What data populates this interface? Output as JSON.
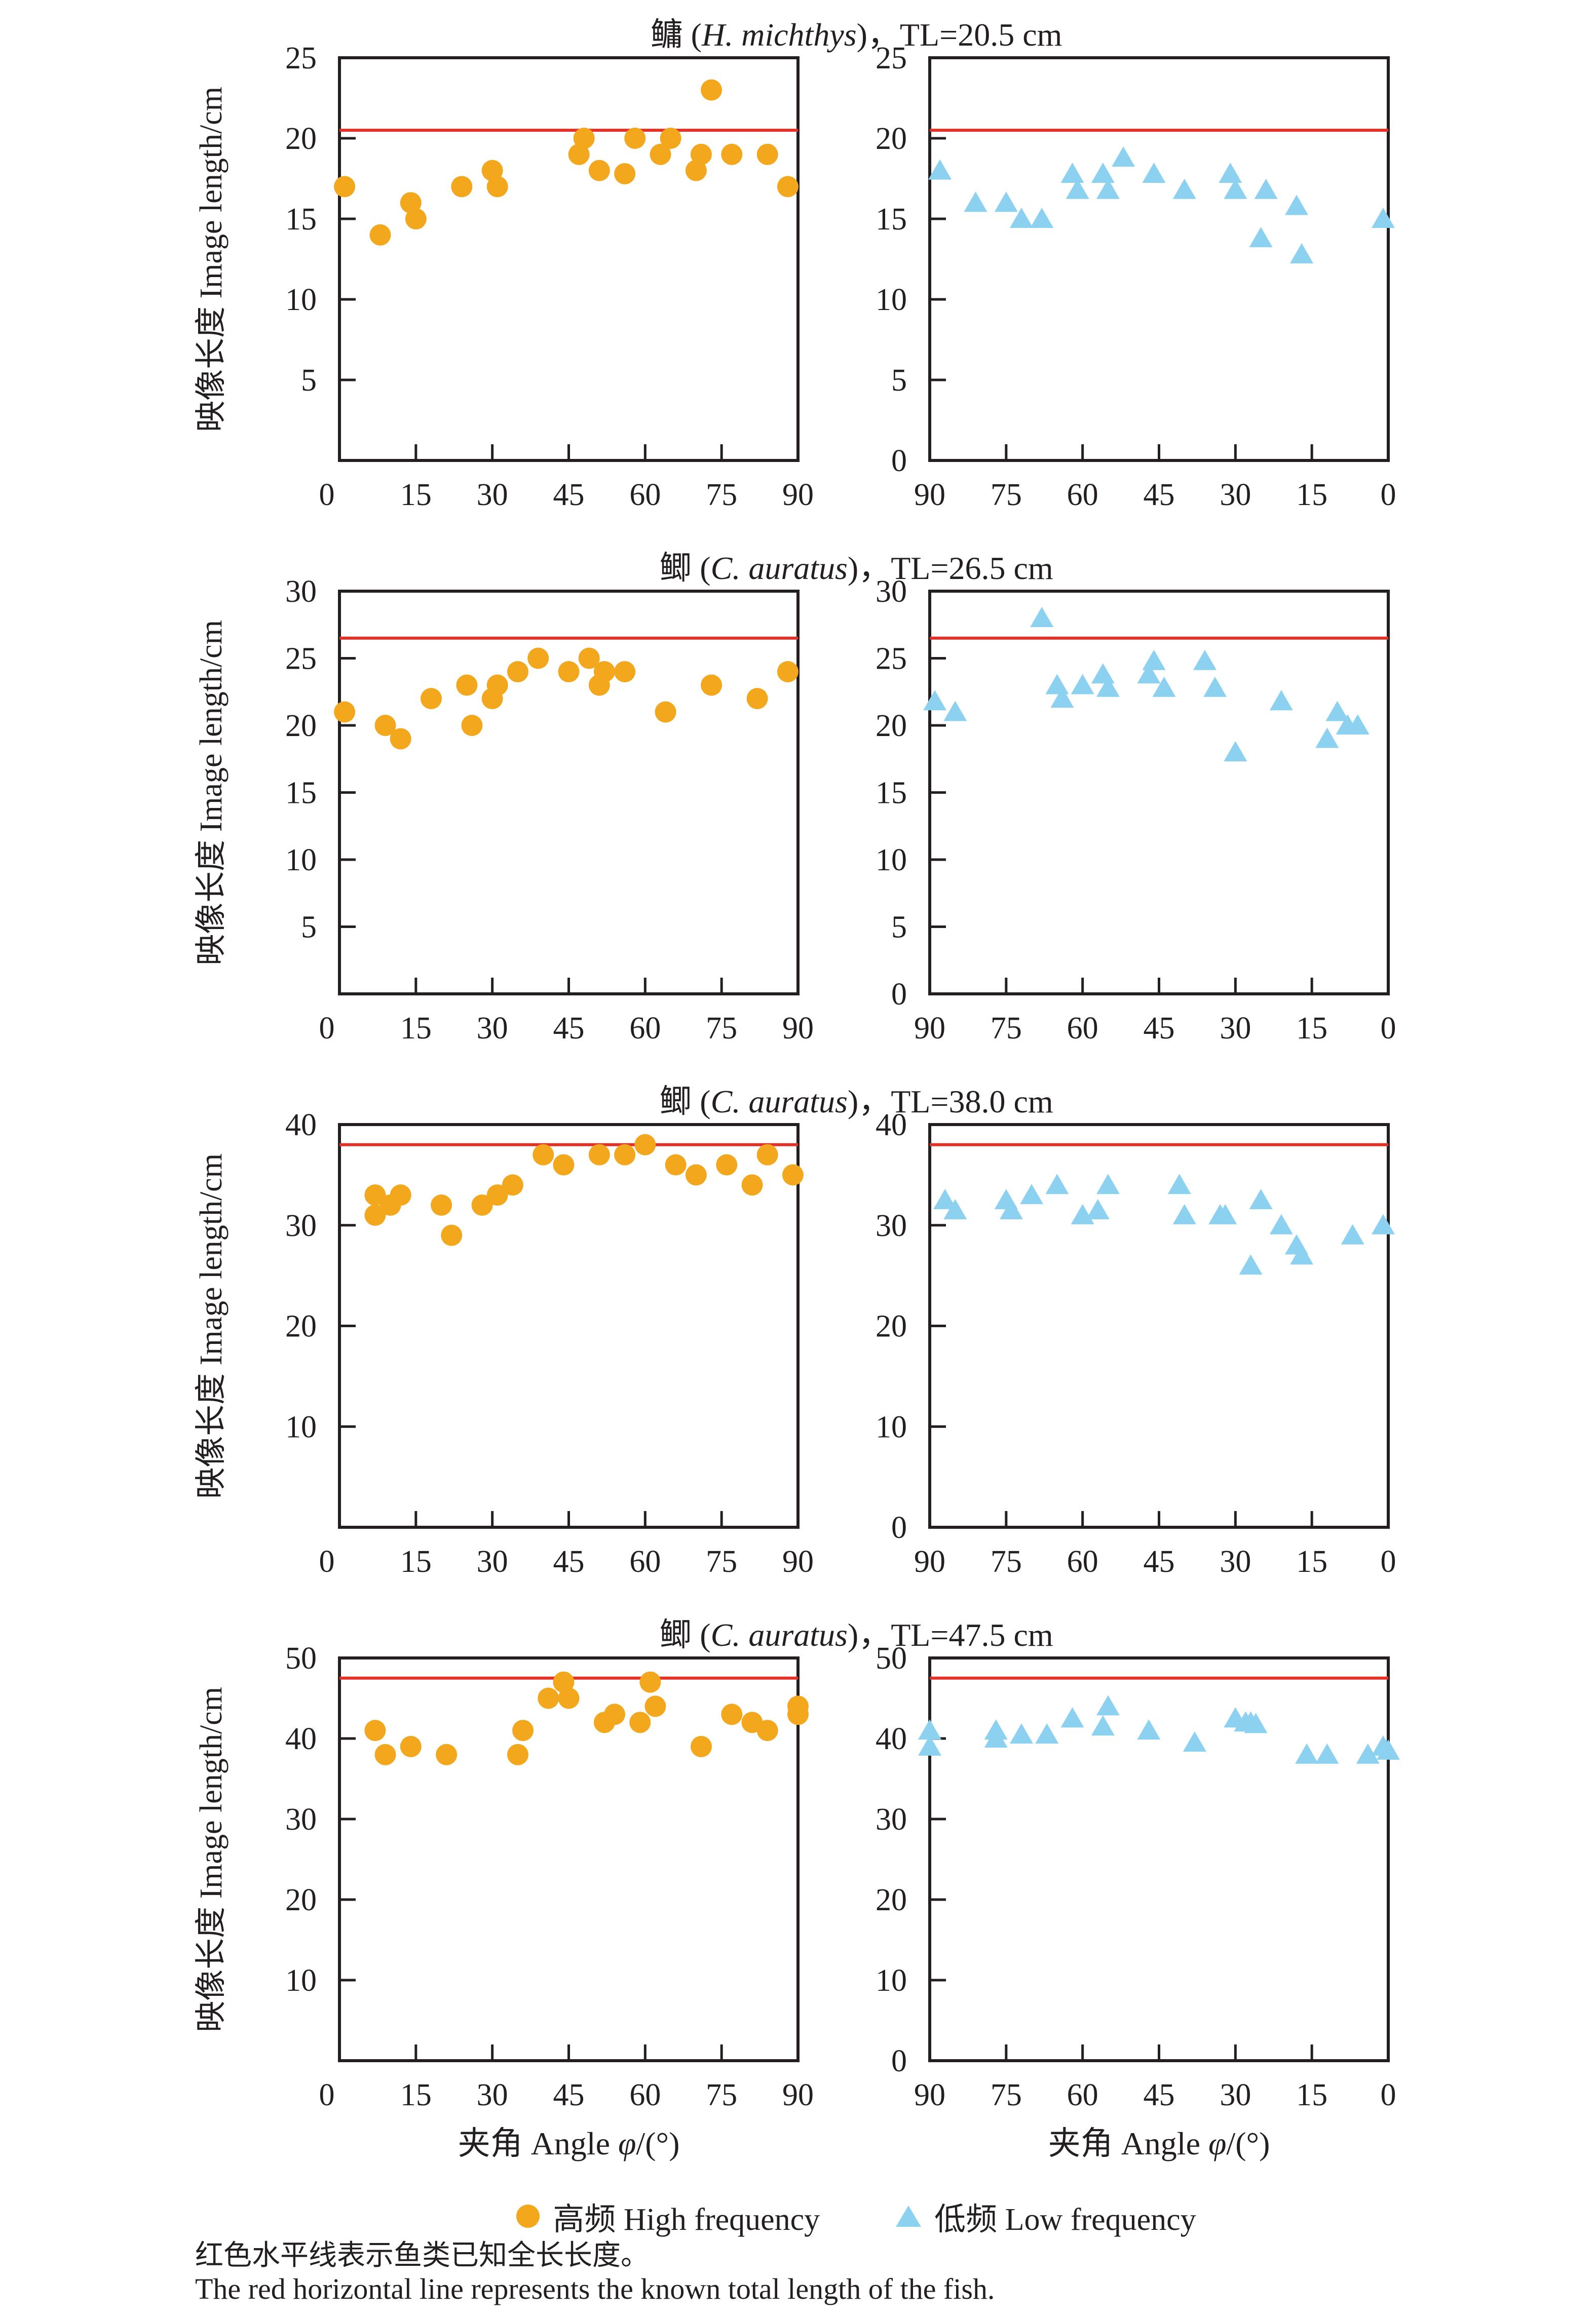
{
  "figure": {
    "y_axis_label": "映像长度 Image length/cm",
    "x_axis_label": {
      "prefix": "夹角 Angle ",
      "phi": "φ",
      "suffix": "/(°)"
    },
    "legend": {
      "high_label": "高频 High frequency",
      "low_label": "低频 Low frequency"
    },
    "caption_cn": "红色水平线表示鱼类已知全长长度。",
    "caption_en": "The red horizontal line represents the known total length of the fish.",
    "colors": {
      "high_frequency": "#f3a71c",
      "low_frequency": "#8cd2f0",
      "reference_line": "#e43128",
      "axis": "#231f20"
    }
  },
  "chart_data": [
    {
      "type": "scatter",
      "title": {
        "prefix": "鳙 (",
        "species": "H. michthys",
        "suffix": ")，TL=20.5 cm"
      },
      "known_total_length_cm": 20.5,
      "ylim": [
        0,
        25
      ],
      "yticks": [
        0,
        5,
        10,
        15,
        20,
        25
      ],
      "panels": [
        {
          "name": "high-frequency",
          "legend": "高频 High frequency",
          "marker": "circle",
          "color": "#f3a71c",
          "x_reversed": false,
          "xticks": [
            0,
            15,
            30,
            45,
            60,
            75,
            90
          ],
          "points": [
            [
              1,
              17
            ],
            [
              8,
              14
            ],
            [
              14,
              16
            ],
            [
              15,
              15
            ],
            [
              24,
              17
            ],
            [
              30,
              18
            ],
            [
              31,
              17
            ],
            [
              47,
              19
            ],
            [
              48,
              20
            ],
            [
              51,
              18
            ],
            [
              56,
              17.8
            ],
            [
              58,
              20
            ],
            [
              63,
              19
            ],
            [
              65,
              20
            ],
            [
              70,
              18
            ],
            [
              71,
              19
            ],
            [
              73,
              23
            ],
            [
              77,
              19
            ],
            [
              84,
              19
            ],
            [
              88,
              17
            ]
          ]
        },
        {
          "name": "low-frequency",
          "legend": "低频 Low frequency",
          "marker": "triangle",
          "color": "#8cd2f0",
          "x_reversed": true,
          "xticks": [
            90,
            75,
            60,
            45,
            30,
            15,
            0
          ],
          "points": [
            [
              88,
              18
            ],
            [
              81,
              16
            ],
            [
              75,
              16
            ],
            [
              72,
              15
            ],
            [
              68,
              15
            ],
            [
              62,
              17.8
            ],
            [
              61,
              16.8
            ],
            [
              56,
              17.8
            ],
            [
              55,
              16.8
            ],
            [
              52,
              18.8
            ],
            [
              46,
              17.8
            ],
            [
              40,
              16.8
            ],
            [
              31,
              17.8
            ],
            [
              30,
              16.8
            ],
            [
              25,
              13.8
            ],
            [
              24,
              16.8
            ],
            [
              18,
              15.8
            ],
            [
              17,
              12.8
            ],
            [
              1,
              15
            ]
          ]
        }
      ]
    },
    {
      "type": "scatter",
      "title": {
        "prefix": "鲫 (",
        "species": "C. auratus",
        "suffix": ")，TL=26.5 cm"
      },
      "known_total_length_cm": 26.5,
      "ylim": [
        0,
        30
      ],
      "yticks": [
        0,
        5,
        10,
        15,
        20,
        25,
        30
      ],
      "panels": [
        {
          "name": "high-frequency",
          "legend": "高频 High frequency",
          "marker": "circle",
          "color": "#f3a71c",
          "x_reversed": false,
          "xticks": [
            0,
            15,
            30,
            45,
            60,
            75,
            90
          ],
          "points": [
            [
              1,
              21
            ],
            [
              9,
              20
            ],
            [
              12,
              19
            ],
            [
              18,
              22
            ],
            [
              25,
              23
            ],
            [
              26,
              20
            ],
            [
              30,
              22
            ],
            [
              31,
              23
            ],
            [
              35,
              24
            ],
            [
              39,
              25
            ],
            [
              45,
              24
            ],
            [
              49,
              25
            ],
            [
              51,
              23
            ],
            [
              52,
              24
            ],
            [
              56,
              24
            ],
            [
              64,
              21
            ],
            [
              73,
              23
            ],
            [
              82,
              22
            ],
            [
              88,
              24
            ]
          ]
        },
        {
          "name": "low-frequency",
          "legend": "低频 Low frequency",
          "marker": "triangle",
          "color": "#8cd2f0",
          "x_reversed": true,
          "xticks": [
            90,
            75,
            60,
            45,
            30,
            15,
            0
          ],
          "points": [
            [
              89,
              21.8
            ],
            [
              85,
              21
            ],
            [
              68,
              28
            ],
            [
              65,
              23
            ],
            [
              64,
              22
            ],
            [
              60,
              23
            ],
            [
              56,
              23.8
            ],
            [
              55,
              22.8
            ],
            [
              47,
              23.8
            ],
            [
              46,
              24.8
            ],
            [
              44,
              22.8
            ],
            [
              36,
              24.8
            ],
            [
              34,
              22.8
            ],
            [
              30,
              18
            ],
            [
              21,
              21.8
            ],
            [
              12,
              19
            ],
            [
              10,
              21
            ],
            [
              8,
              20
            ],
            [
              6,
              20
            ]
          ]
        }
      ]
    },
    {
      "type": "scatter",
      "title": {
        "prefix": "鲫 (",
        "species": "C. auratus",
        "suffix": ")，TL=38.0 cm"
      },
      "known_total_length_cm": 38.0,
      "ylim": [
        0,
        40
      ],
      "yticks": [
        0,
        10,
        20,
        30,
        40
      ],
      "panels": [
        {
          "name": "high-frequency",
          "legend": "高频 High frequency",
          "marker": "circle",
          "color": "#f3a71c",
          "x_reversed": false,
          "xticks": [
            0,
            15,
            30,
            45,
            60,
            75,
            90
          ],
          "points": [
            [
              7,
              33
            ],
            [
              7,
              31
            ],
            [
              10,
              32
            ],
            [
              12,
              33
            ],
            [
              20,
              32
            ],
            [
              22,
              29
            ],
            [
              28,
              32
            ],
            [
              31,
              33
            ],
            [
              34,
              34
            ],
            [
              40,
              37
            ],
            [
              44,
              36
            ],
            [
              51,
              37
            ],
            [
              56,
              37
            ],
            [
              60,
              38
            ],
            [
              66,
              36
            ],
            [
              70,
              35
            ],
            [
              76,
              36
            ],
            [
              81,
              34
            ],
            [
              84,
              37
            ],
            [
              89,
              35
            ]
          ]
        },
        {
          "name": "low-frequency",
          "legend": "低频 Low frequency",
          "marker": "triangle",
          "color": "#8cd2f0",
          "x_reversed": true,
          "xticks": [
            90,
            75,
            60,
            45,
            30,
            15,
            0
          ],
          "points": [
            [
              87,
              32.5
            ],
            [
              85,
              31.5
            ],
            [
              75,
              32.5
            ],
            [
              74,
              31.5
            ],
            [
              70,
              33
            ],
            [
              65,
              34
            ],
            [
              60,
              31
            ],
            [
              57,
              31.5
            ],
            [
              55,
              34
            ],
            [
              41,
              34
            ],
            [
              40,
              31
            ],
            [
              33,
              31
            ],
            [
              32,
              31
            ],
            [
              27,
              26
            ],
            [
              25,
              32.5
            ],
            [
              21,
              30
            ],
            [
              18,
              28
            ],
            [
              17,
              27
            ],
            [
              7,
              29
            ],
            [
              1,
              30
            ]
          ]
        }
      ]
    },
    {
      "type": "scatter",
      "title": {
        "prefix": "鲫 (",
        "species": "C. auratus",
        "suffix": ")，TL=47.5 cm"
      },
      "known_total_length_cm": 47.5,
      "ylim": [
        0,
        50
      ],
      "yticks": [
        0,
        10,
        20,
        30,
        40,
        50
      ],
      "panels": [
        {
          "name": "high-frequency",
          "legend": "高频 High frequency",
          "marker": "circle",
          "color": "#f3a71c",
          "x_reversed": false,
          "xticks": [
            0,
            15,
            30,
            45,
            60,
            75,
            90
          ],
          "points": [
            [
              7,
              41
            ],
            [
              9,
              38
            ],
            [
              14,
              39
            ],
            [
              21,
              38
            ],
            [
              35,
              38
            ],
            [
              36,
              41
            ],
            [
              41,
              45
            ],
            [
              44,
              47
            ],
            [
              45,
              45
            ],
            [
              52,
              42
            ],
            [
              54,
              43
            ],
            [
              59,
              42
            ],
            [
              61,
              47
            ],
            [
              62,
              44
            ],
            [
              71,
              39
            ],
            [
              77,
              43
            ],
            [
              81,
              42
            ],
            [
              84,
              41
            ],
            [
              90,
              44
            ],
            [
              90,
              43
            ]
          ]
        },
        {
          "name": "low-frequency",
          "legend": "低频 Low frequency",
          "marker": "triangle",
          "color": "#8cd2f0",
          "x_reversed": true,
          "xticks": [
            90,
            75,
            60,
            45,
            30,
            15,
            0
          ],
          "points": [
            [
              90,
              41
            ],
            [
              90,
              39
            ],
            [
              77,
              41
            ],
            [
              77,
              40
            ],
            [
              72,
              40.5
            ],
            [
              67,
              40.5
            ],
            [
              62,
              42.5
            ],
            [
              56,
              41.5
            ],
            [
              55,
              44
            ],
            [
              47,
              41
            ],
            [
              38,
              39.5
            ],
            [
              30,
              42.5
            ],
            [
              28,
              42
            ],
            [
              27,
              42
            ],
            [
              26,
              41.8
            ],
            [
              16,
              38
            ],
            [
              12,
              38
            ],
            [
              4,
              38
            ],
            [
              1,
              39
            ],
            [
              0,
              38.5
            ]
          ]
        }
      ]
    }
  ]
}
